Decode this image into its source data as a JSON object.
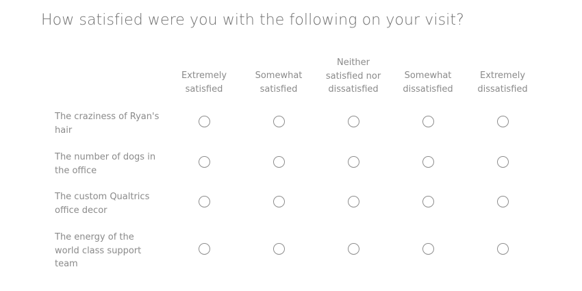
{
  "question": "How satisfied were you with the following on your visit?",
  "columns": [
    "Extremely satisfied",
    "Somewhat satisfied",
    "Neither satisfied nor dissatisfied",
    "Somewhat dissatisfied",
    "Extremely dissatisfied"
  ],
  "rows": [
    "The craziness of Ryan's hair",
    "The number of dogs in the office",
    "The custom Qualtrics office decor",
    "The energy of the world class support team"
  ],
  "colors": {
    "text": "#8a8a8a",
    "radio_border": "#8c8c8c"
  }
}
